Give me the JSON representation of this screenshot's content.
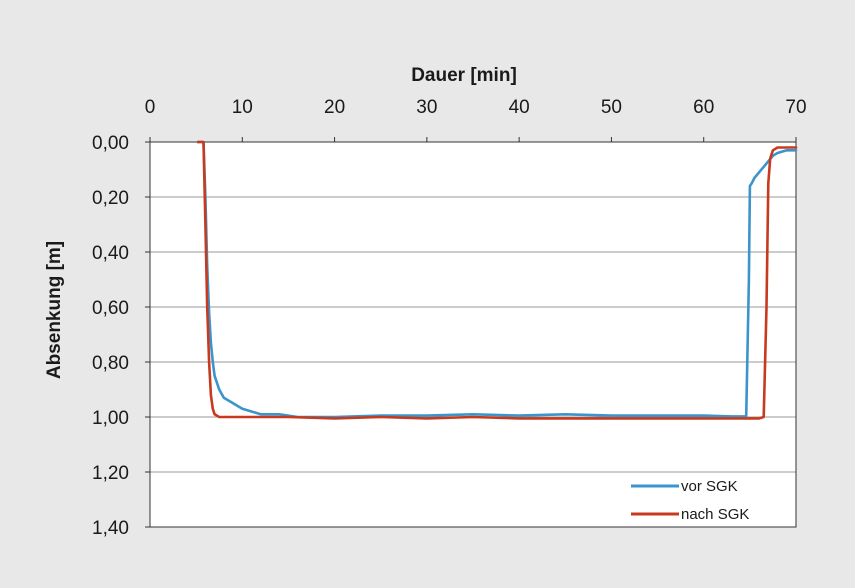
{
  "chart_data": {
    "type": "line",
    "xlabel": "Dauer [min]",
    "ylabel": "Absenkung [m]",
    "xlim": [
      0,
      70
    ],
    "ylim": [
      0,
      1.4
    ],
    "y_inverted": true,
    "x_axis_position": "top",
    "x_ticks": [
      0,
      10,
      20,
      30,
      40,
      50,
      60,
      70
    ],
    "x_tick_labels": [
      "0",
      "10",
      "20",
      "30",
      "40",
      "50",
      "60",
      "70"
    ],
    "y_ticks": [
      0,
      0.2,
      0.4,
      0.6,
      0.8,
      1.0,
      1.2,
      1.4
    ],
    "y_tick_labels": [
      "0,00",
      "0,20",
      "0,40",
      "0,60",
      "0,80",
      "1,00",
      "1,20",
      "1,40"
    ],
    "grid": "horizontal",
    "legend_position": "bottom-right",
    "series": [
      {
        "name": "vor SGK",
        "color": "#3b94cc",
        "x": [
          5.2,
          5.8,
          6.0,
          6.2,
          6.4,
          6.6,
          6.8,
          7.0,
          7.5,
          8.0,
          9.0,
          10.0,
          11.0,
          12.0,
          14.0,
          16.0,
          20.0,
          25.0,
          30.0,
          35.0,
          40.0,
          45.0,
          50.0,
          55.0,
          60.0,
          63.0,
          64.6,
          64.9,
          65.0,
          65.2,
          65.5,
          66.0,
          66.5,
          67.0,
          67.5,
          68.0,
          69.0,
          70.0
        ],
        "y": [
          0.0,
          0.0,
          0.2,
          0.45,
          0.62,
          0.73,
          0.8,
          0.85,
          0.9,
          0.93,
          0.95,
          0.97,
          0.98,
          0.99,
          0.99,
          1.0,
          1.0,
          0.995,
          0.995,
          0.99,
          0.995,
          0.99,
          0.995,
          0.995,
          0.995,
          0.998,
          0.998,
          0.5,
          0.16,
          0.15,
          0.13,
          0.11,
          0.09,
          0.07,
          0.05,
          0.04,
          0.03,
          0.03
        ]
      },
      {
        "name": "nach SGK",
        "color": "#c83a1e",
        "x": [
          5.2,
          5.8,
          6.0,
          6.2,
          6.4,
          6.6,
          6.8,
          7.0,
          7.5,
          8.0,
          10.0,
          15.0,
          20.0,
          25.0,
          30.0,
          35.0,
          40.0,
          45.0,
          50.0,
          55.0,
          60.0,
          65.0,
          66.0,
          66.5,
          66.8,
          67.0,
          67.2,
          67.5,
          68.0,
          69.0,
          70.0
        ],
        "y": [
          0.0,
          0.0,
          0.3,
          0.6,
          0.8,
          0.92,
          0.97,
          0.99,
          1.0,
          1.0,
          1.0,
          1.0,
          1.005,
          1.0,
          1.005,
          1.0,
          1.005,
          1.005,
          1.005,
          1.005,
          1.005,
          1.005,
          1.005,
          1.0,
          0.6,
          0.15,
          0.06,
          0.03,
          0.02,
          0.02,
          0.02
        ]
      }
    ]
  }
}
